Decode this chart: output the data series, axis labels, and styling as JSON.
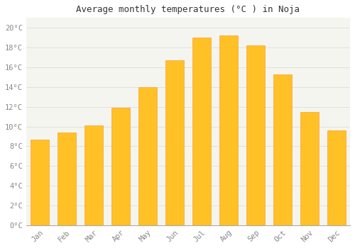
{
  "title": "Average monthly temperatures (°C ) in Noja",
  "months": [
    "Jan",
    "Feb",
    "Mar",
    "Apr",
    "May",
    "Jun",
    "Jul",
    "Aug",
    "Sep",
    "Oct",
    "Nov",
    "Dec"
  ],
  "temperatures": [
    8.7,
    9.4,
    10.1,
    11.9,
    14.0,
    16.7,
    19.0,
    19.2,
    18.2,
    15.3,
    11.5,
    9.6
  ],
  "bar_color_face": "#FFC125",
  "bar_color_edge": "#FFA030",
  "background_color": "#FFFFFF",
  "plot_bg_color": "#F5F5F0",
  "grid_color": "#DDDDDD",
  "tick_label_color": "#888888",
  "title_color": "#333333",
  "ylim": [
    0,
    21
  ],
  "ytick_step": 2,
  "bar_width": 0.7,
  "title_fontsize": 9,
  "tick_fontsize": 7.5
}
